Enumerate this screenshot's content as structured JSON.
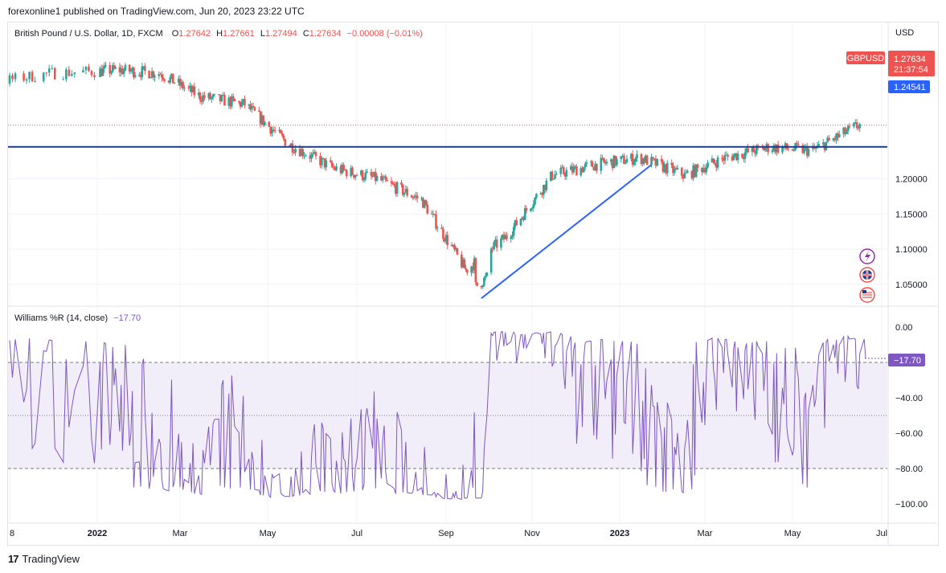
{
  "header": {
    "text": "forexonline1 published on TradingView.com, Jun 20, 2023 23:22 UTC"
  },
  "legend": {
    "title": "British Pound / U.S. Dollar, 1D, FXCM",
    "o_label": "O",
    "o_value": "1.27642",
    "h_label": "H",
    "h_value": "1.27661",
    "l_label": "L",
    "l_value": "1.27494",
    "c_label": "C",
    "c_value": "1.27634",
    "change": "−0.00008 (−0.01%)"
  },
  "indicator_legend": {
    "title": "Williams %R (14, close)",
    "value": "−17.70"
  },
  "price_axis": {
    "currency": "USD",
    "ticks": [
      "1.20000",
      "1.15000",
      "1.10000",
      "1.05000"
    ],
    "symbol_tag": "GBPUSD",
    "last_price": "1.27634",
    "countdown": "21:37:54",
    "line_label": "1.24541"
  },
  "wr_axis": {
    "ticks": [
      "0.00",
      "−40.00",
      "−60.00",
      "−80.00",
      "−100.00"
    ],
    "current": "−17.70"
  },
  "time_axis": {
    "labels": [
      "8",
      "2022",
      "Mar",
      "May",
      "Jul",
      "Sep",
      "Nov",
      "2023",
      "Mar",
      "May",
      "Jul"
    ]
  },
  "footer": {
    "logo": "17",
    "brand": "TradingView"
  },
  "colors": {
    "up": "#26a69a",
    "down": "#ef5350",
    "line": "#2962ff",
    "wr": "#7e57c2",
    "band": "#ede7f6"
  },
  "side_icons": [
    "lightning-icon",
    "uk-flag-icon",
    "us-flag-icon"
  ],
  "chart_data": [
    {
      "type": "candlestick",
      "symbol": "GBPUSD",
      "title": "British Pound / U.S. Dollar, 1D, FXCM",
      "ylabel": "USD",
      "ylim": [
        1.02,
        1.42
      ],
      "x": [
        "2021-11",
        "2021-12",
        "2022-01",
        "2022-02",
        "2022-03",
        "2022-04",
        "2022-05",
        "2022-06",
        "2022-07",
        "2022-08",
        "2022-09",
        "2022-10",
        "2022-11",
        "2022-12",
        "2023-01",
        "2023-02",
        "2023-03",
        "2023-04",
        "2023-05",
        "2023-06"
      ],
      "close": [
        1.33,
        1.35,
        1.355,
        1.35,
        1.317,
        1.306,
        1.25,
        1.215,
        1.2,
        1.17,
        1.07,
        1.12,
        1.205,
        1.22,
        1.23,
        1.205,
        1.23,
        1.245,
        1.24,
        1.2763
      ],
      "last_close": 1.27634,
      "horizontal_line": 1.24541,
      "trendline": [
        {
          "x": "2022-09-26",
          "y": 1.03
        },
        {
          "x": "2023-01-23",
          "y": 1.22
        }
      ]
    },
    {
      "type": "line",
      "title": "Williams %R (14, close)",
      "ylim": [
        -100,
        0
      ],
      "bands": [
        -20,
        -50,
        -80
      ],
      "last_value": -17.7
    }
  ]
}
